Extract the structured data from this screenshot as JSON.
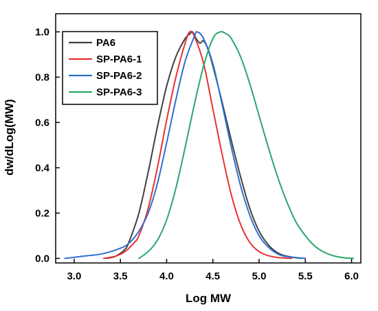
{
  "chart_data": {
    "type": "line",
    "title": "",
    "xlabel": "Log MW",
    "ylabel": "dw/dLog(MW)",
    "xlim": [
      2.8,
      6.1
    ],
    "ylim": [
      -0.02,
      1.08
    ],
    "xticks": [
      3.0,
      3.5,
      4.0,
      4.5,
      5.0,
      5.5,
      6.0
    ],
    "xtick_labels": [
      "3.0",
      "3.5",
      "4.0",
      "4.5",
      "5.0",
      "5.5",
      "6.0"
    ],
    "yticks": [
      0.0,
      0.2,
      0.4,
      0.6,
      0.8,
      1.0
    ],
    "ytick_labels": [
      "0.0",
      "0.2",
      "0.4",
      "0.6",
      "0.8",
      "1.0"
    ],
    "grid": false,
    "legend_position": "top-left",
    "series": [
      {
        "name": "PA6",
        "color": "#404040",
        "x": [
          3.35,
          3.45,
          3.55,
          3.6,
          3.7,
          3.8,
          3.9,
          4.0,
          4.1,
          4.2,
          4.25,
          4.28,
          4.32,
          4.36,
          4.4,
          4.45,
          4.5,
          4.6,
          4.7,
          4.8,
          4.9,
          5.0,
          5.1,
          5.2,
          5.3,
          5.45
        ],
        "y": [
          0.0,
          0.01,
          0.04,
          0.08,
          0.2,
          0.38,
          0.58,
          0.76,
          0.89,
          0.97,
          0.99,
          1.0,
          0.97,
          0.95,
          0.96,
          0.92,
          0.85,
          0.69,
          0.52,
          0.36,
          0.22,
          0.12,
          0.06,
          0.025,
          0.01,
          0.0
        ]
      },
      {
        "name": "SP-PA6-1",
        "color": "#e8312d",
        "x": [
          3.32,
          3.45,
          3.55,
          3.65,
          3.7,
          3.8,
          3.9,
          4.0,
          4.1,
          4.2,
          4.25,
          4.3,
          4.4,
          4.5,
          4.6,
          4.7,
          4.8,
          4.9,
          5.0,
          5.1,
          5.2,
          5.35
        ],
        "y": [
          0.0,
          0.01,
          0.03,
          0.07,
          0.1,
          0.22,
          0.4,
          0.61,
          0.8,
          0.95,
          1.0,
          0.98,
          0.86,
          0.66,
          0.46,
          0.28,
          0.15,
          0.07,
          0.03,
          0.012,
          0.004,
          0.0
        ]
      },
      {
        "name": "SP-PA6-2",
        "color": "#2f6fd0",
        "x": [
          2.9,
          3.1,
          3.3,
          3.5,
          3.6,
          3.7,
          3.8,
          3.9,
          4.0,
          4.1,
          4.2,
          4.3,
          4.33,
          4.4,
          4.5,
          4.6,
          4.7,
          4.8,
          4.9,
          5.0,
          5.1,
          5.2,
          5.3,
          5.5
        ],
        "y": [
          0.0,
          0.01,
          0.02,
          0.045,
          0.07,
          0.12,
          0.2,
          0.33,
          0.51,
          0.7,
          0.87,
          0.98,
          1.0,
          0.97,
          0.86,
          0.68,
          0.49,
          0.32,
          0.19,
          0.1,
          0.05,
          0.02,
          0.008,
          0.0
        ]
      },
      {
        "name": "SP-PA6-3",
        "color": "#2aa66a",
        "x": [
          3.7,
          3.8,
          3.9,
          4.0,
          4.1,
          4.2,
          4.3,
          4.4,
          4.5,
          4.58,
          4.65,
          4.7,
          4.8,
          4.9,
          5.0,
          5.1,
          5.2,
          5.3,
          5.4,
          5.5,
          5.6,
          5.7,
          5.8,
          5.9,
          6.02
        ],
        "y": [
          0.0,
          0.03,
          0.08,
          0.17,
          0.31,
          0.49,
          0.68,
          0.85,
          0.97,
          1.0,
          0.99,
          0.97,
          0.89,
          0.77,
          0.63,
          0.49,
          0.36,
          0.25,
          0.16,
          0.1,
          0.055,
          0.028,
          0.012,
          0.004,
          0.0
        ]
      }
    ]
  }
}
